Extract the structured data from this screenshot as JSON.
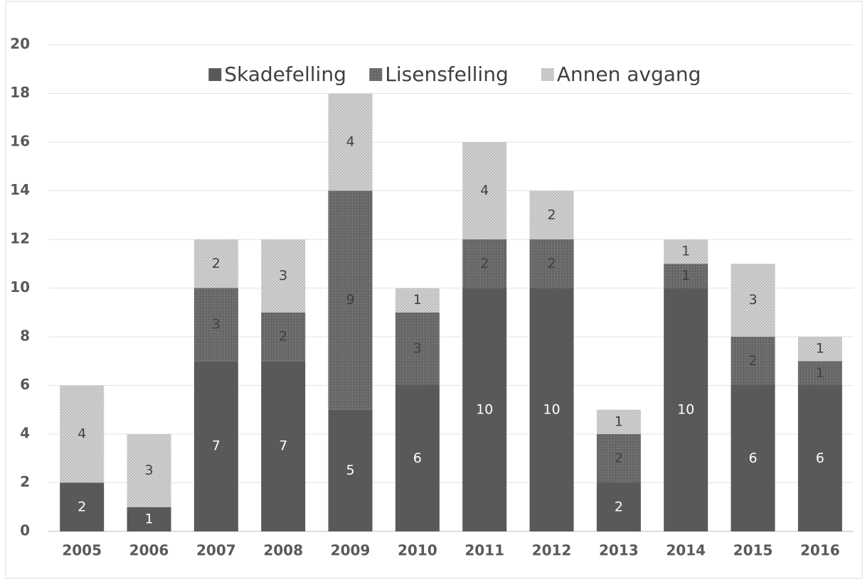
{
  "chart_data": {
    "type": "stacked_bar",
    "categories": [
      "2005",
      "2006",
      "2007",
      "2008",
      "2009",
      "2010",
      "2011",
      "2012",
      "2013",
      "2014",
      "2015",
      "2016"
    ],
    "series": [
      {
        "name": "Skadefelling",
        "color": "#595959",
        "values": [
          2,
          1,
          7,
          7,
          5,
          6,
          10,
          10,
          2,
          10,
          6,
          6
        ]
      },
      {
        "name": "Lisensfelling",
        "color": "#7f7f7f",
        "values": [
          0,
          0,
          3,
          2,
          9,
          3,
          2,
          2,
          2,
          1,
          2,
          1
        ]
      },
      {
        "name": "Annen avgang",
        "color": "#c9c9c9",
        "values": [
          4,
          3,
          2,
          3,
          4,
          1,
          4,
          2,
          1,
          1,
          3,
          1
        ]
      }
    ],
    "ylim": [
      0,
      20
    ],
    "yticks": [
      0,
      2,
      4,
      6,
      8,
      10,
      12,
      14,
      16,
      18,
      20
    ],
    "grid": true,
    "legend": "top"
  }
}
